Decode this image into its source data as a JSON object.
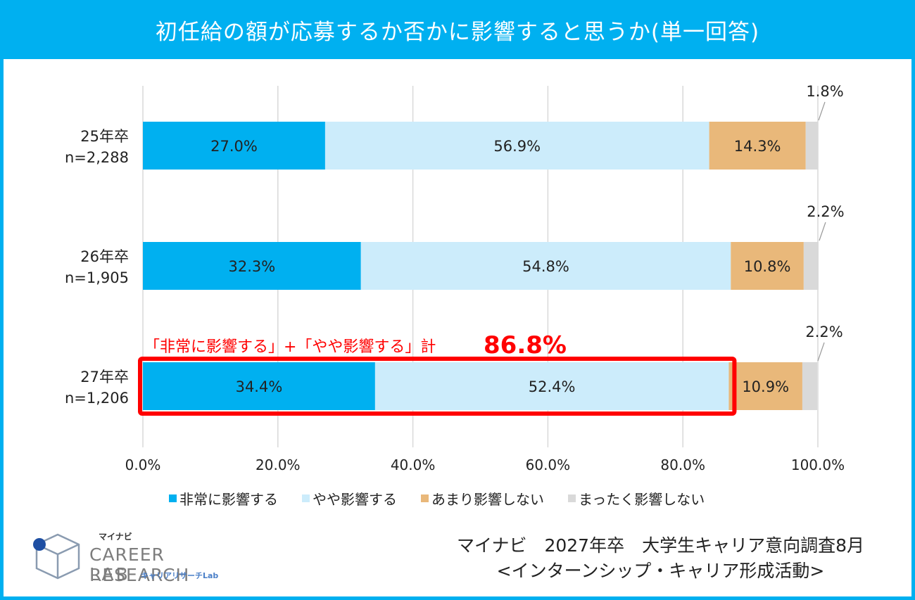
{
  "title": "初任給の額が応募するか否かに影響すると思うか(単一回答)",
  "chart_data": {
    "type": "bar",
    "stacked": true,
    "orientation": "horizontal",
    "categories": [
      {
        "label": "25年卒",
        "sub": "n=2,288"
      },
      {
        "label": "26年卒",
        "sub": "n=1,905"
      },
      {
        "label": "27年卒",
        "sub": "n=1,206"
      }
    ],
    "series": [
      {
        "name": "非常に影響する",
        "color": "#00b0f0",
        "values": [
          27.0,
          32.3,
          34.4
        ],
        "labels": [
          "27.0%",
          "32.3%",
          "34.4%"
        ]
      },
      {
        "name": "やや影響する",
        "color": "#ccecfb",
        "values": [
          56.9,
          54.8,
          52.4
        ],
        "labels": [
          "56.9%",
          "54.8%",
          "52.4%"
        ]
      },
      {
        "name": "あまり影響しない",
        "color": "#e9b87a",
        "values": [
          14.3,
          10.8,
          10.9
        ],
        "labels": [
          "14.3%",
          "10.8%",
          "10.9%"
        ]
      },
      {
        "name": "まったく影響しない",
        "color": "#d9d9d9",
        "values": [
          1.8,
          2.2,
          2.2
        ],
        "labels": [
          "1.8%",
          "2.2%",
          "2.2%"
        ]
      }
    ],
    "x_ticks": [
      "0.0%",
      "20.0%",
      "40.0%",
      "60.0%",
      "80.0%",
      "100.0%"
    ],
    "xlim": [
      0,
      100
    ],
    "grid": true,
    "legend_position": "bottom",
    "highlight": {
      "category_index": 2,
      "text": "「非常に影響する」+「やや影響する」計",
      "value_text": "86.8%",
      "value": 86.8,
      "color": "#ff0000"
    }
  },
  "logo": {
    "kana_top": "マイナビ",
    "main": "CAREER RESEARCH",
    "lab": "LAB",
    "kana_sub": "キャリアリサーチLab"
  },
  "source": {
    "line1": "マイナビ　2027年卒　大学生キャリア意向調査8月",
    "line2": "<インターンシップ・キャリア形成活動>"
  }
}
